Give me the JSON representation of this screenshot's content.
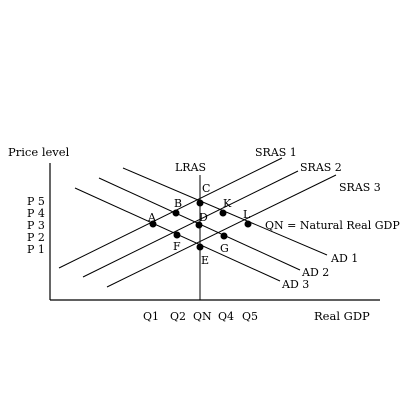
{
  "axes": {
    "y_label": "Price level",
    "x_label": "Real GDP"
  },
  "price_levels": [
    "P 5",
    "P 4",
    "P 3",
    "P 2",
    "P 1"
  ],
  "quantities": [
    "Q1",
    "Q2",
    "QN",
    "Q4",
    "Q5"
  ],
  "curves": {
    "lras": "LRAS",
    "sras1": "SRAS 1",
    "sras2": "SRAS 2",
    "sras3": "SRAS 3",
    "ad1": "AD 1",
    "ad2": "AD 2",
    "ad3": "AD 3"
  },
  "points": {
    "a": "A",
    "b": "B",
    "c": "C",
    "d": "D",
    "e": "E",
    "f": "F",
    "g": "G",
    "k": "K",
    "l": "L"
  },
  "annotation": "QN = Natural Real GDP"
}
